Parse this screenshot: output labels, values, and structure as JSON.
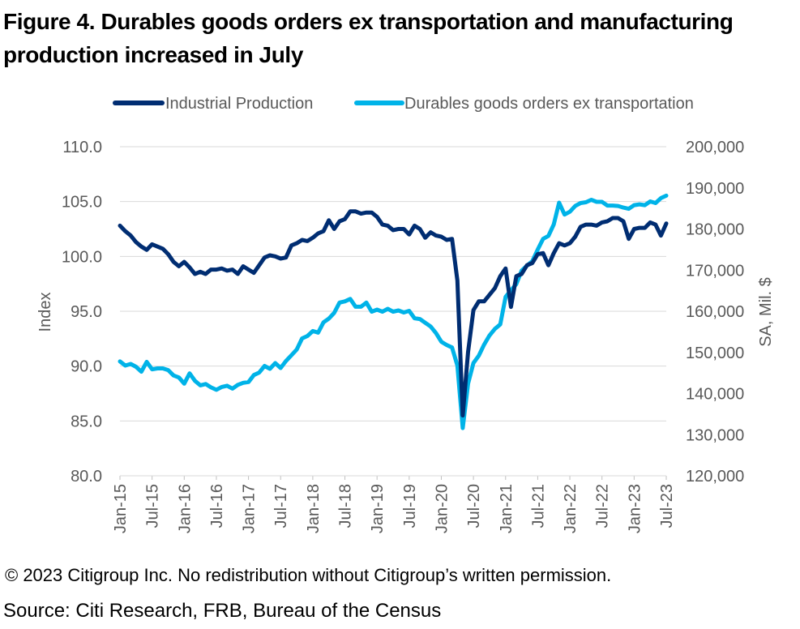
{
  "title": "Figure 4. Durables goods orders ex transportation and manufacturing production increased in July",
  "footer": {
    "copyright": "© 2023 Citigroup Inc. No redistribution without Citigroup’s written permission.",
    "source": "Source: Citi Research, FRB, Bureau of the Census"
  },
  "chart_data": {
    "type": "line",
    "legend_position": "top",
    "grid": "horizontal",
    "x_tick_labels": [
      "Jan-15",
      "Jul-15",
      "Jan-16",
      "Jul-16",
      "Jan-17",
      "Jul-17",
      "Jan-18",
      "Jul-18",
      "Jan-19",
      "Jul-19",
      "Jan-20",
      "Jul-20",
      "Jan-21",
      "Jul-21",
      "Jan-22",
      "Jul-22",
      "Jan-23",
      "Jul-23"
    ],
    "xrange": [
      "Jan-15",
      "Jul-23"
    ],
    "y_left": {
      "label": "Index",
      "range": [
        80,
        110
      ],
      "ticks": [
        "80.0",
        "85.0",
        "90.0",
        "95.0",
        "100.0",
        "105.0",
        "110.0"
      ]
    },
    "y_right": {
      "label": "SA, Mil. $",
      "range": [
        120000,
        200000
      ],
      "ticks": [
        "120,000",
        "130,000",
        "140,000",
        "150,000",
        "160,000",
        "170,000",
        "180,000",
        "190,000",
        "200,000"
      ]
    },
    "series": [
      {
        "name": "Industrial Production",
        "axis": "left",
        "color": "#002D72",
        "values": [
          102.8,
          102.3,
          101.9,
          101.3,
          100.9,
          100.6,
          101.1,
          100.9,
          100.7,
          100.2,
          99.5,
          99.1,
          99.5,
          99.0,
          98.4,
          98.6,
          98.4,
          98.8,
          98.8,
          98.9,
          98.7,
          98.8,
          98.4,
          99.1,
          98.8,
          98.5,
          99.2,
          99.9,
          100.1,
          100.0,
          99.8,
          99.9,
          101.0,
          101.2,
          101.5,
          101.4,
          101.7,
          102.1,
          102.3,
          103.3,
          102.5,
          103.2,
          103.4,
          104.1,
          104.1,
          103.9,
          104.0,
          104.0,
          103.6,
          102.9,
          102.8,
          102.4,
          102.5,
          102.5,
          102.0,
          102.8,
          102.5,
          101.7,
          102.2,
          101.9,
          101.8,
          101.5,
          101.6,
          97.8,
          85.5,
          91.3,
          95.1,
          95.9,
          95.9,
          96.5,
          97.1,
          98.2,
          98.9,
          95.4,
          98.2,
          98.4,
          99.2,
          99.4,
          100.2,
          100.3,
          99.2,
          100.3,
          101.2,
          101.0,
          101.2,
          101.8,
          102.7,
          102.9,
          102.9,
          102.8,
          103.1,
          103.2,
          103.5,
          103.5,
          103.2,
          101.6,
          102.5,
          102.6,
          102.6,
          103.1,
          102.9,
          101.9,
          103.0
        ]
      },
      {
        "name": "Durables goods orders ex transportation",
        "axis": "right",
        "color": "#00B3E8",
        "values": [
          147800,
          146800,
          147200,
          146500,
          145300,
          147700,
          145900,
          146100,
          146100,
          145700,
          144400,
          143900,
          142400,
          144900,
          143100,
          142000,
          142300,
          141500,
          140900,
          141600,
          141900,
          141200,
          142100,
          142600,
          142800,
          144500,
          145100,
          146700,
          146000,
          147400,
          146200,
          147900,
          149300,
          150700,
          153400,
          154000,
          155200,
          154800,
          157300,
          158200,
          159600,
          162100,
          162400,
          163000,
          161100,
          161100,
          162100,
          159900,
          160400,
          159900,
          160600,
          159900,
          160200,
          159700,
          160100,
          158300,
          158100,
          157200,
          156300,
          154700,
          152600,
          151800,
          151200,
          146800,
          131600,
          142400,
          147400,
          149200,
          151900,
          154100,
          155700,
          156800,
          163500,
          165100,
          166600,
          169900,
          171100,
          172200,
          175000,
          177600,
          178300,
          181100,
          186400,
          183500,
          184200,
          185600,
          186300,
          186500,
          187100,
          186600,
          186600,
          185700,
          185700,
          185600,
          185200,
          184900,
          185800,
          186000,
          185800,
          186700,
          186300,
          187500,
          188100
        ]
      }
    ]
  }
}
